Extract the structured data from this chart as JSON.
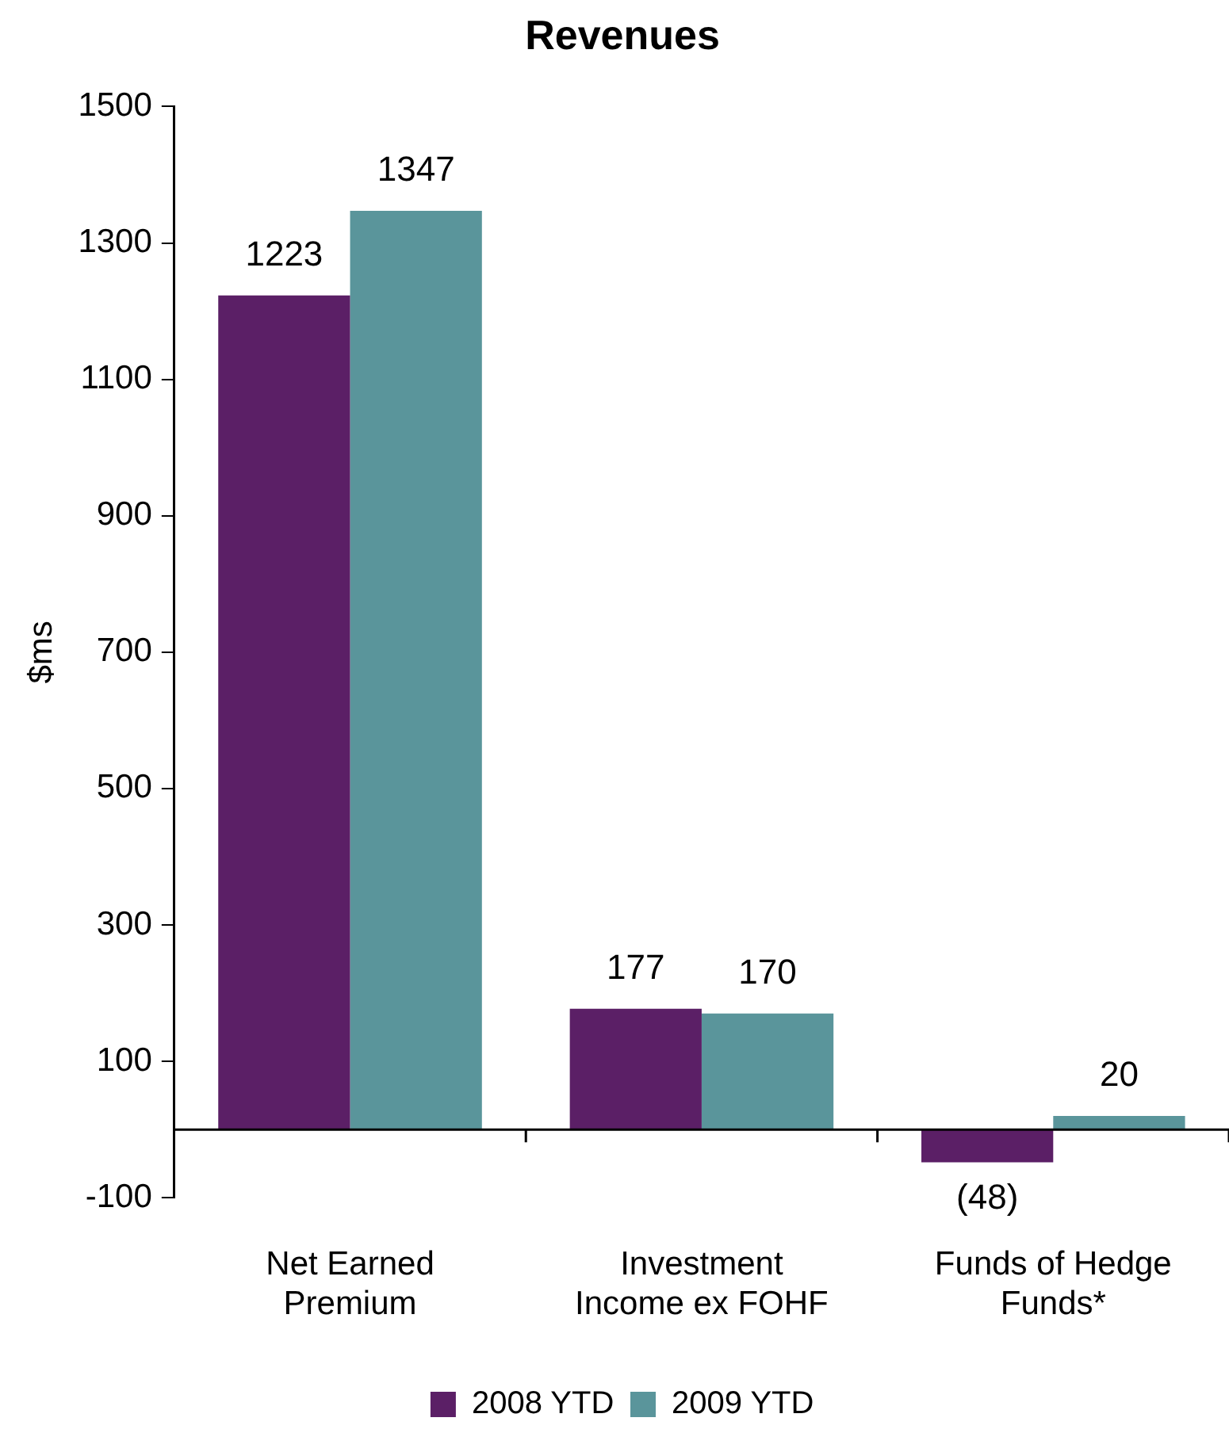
{
  "chart_data": {
    "type": "bar",
    "title": "Revenues",
    "ylabel": "$ms",
    "categories": [
      "Net Earned Premium",
      "Investment Income ex FOHF",
      "Funds of Hedge Funds*"
    ],
    "series": [
      {
        "name": "2008 YTD",
        "color": "#5b1f66",
        "values": [
          1223,
          177,
          -48
        ],
        "value_labels": [
          "1223",
          "177",
          "(48)"
        ]
      },
      {
        "name": "2009 YTD",
        "color": "#5a959b",
        "values": [
          1347,
          170,
          20
        ],
        "value_labels": [
          "1347",
          "170",
          "20"
        ]
      }
    ],
    "ylim": [
      -100,
      1500
    ],
    "yticks": [
      -100,
      100,
      300,
      500,
      700,
      900,
      1100,
      1300,
      1500
    ],
    "grid": false,
    "legend": "bottom"
  }
}
